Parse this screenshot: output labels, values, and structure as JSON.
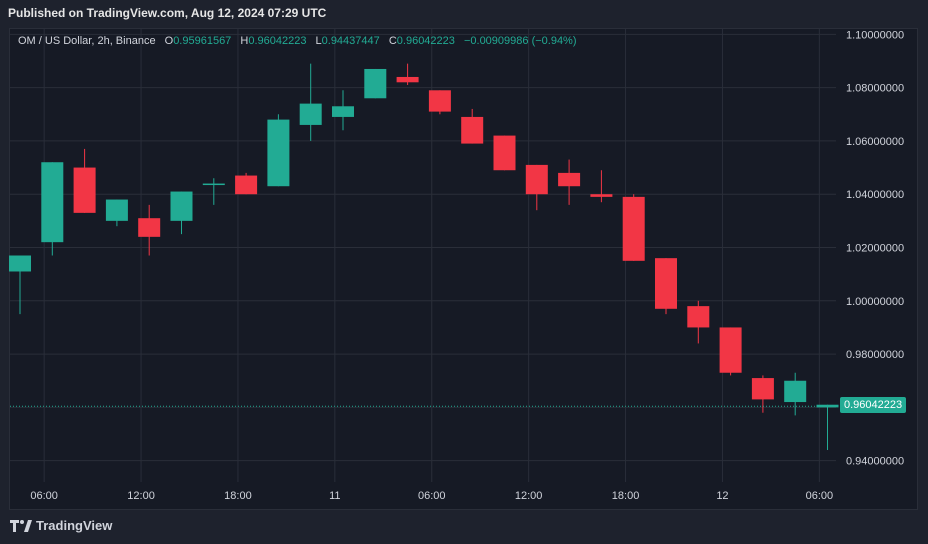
{
  "published": "Published on TradingView.com, Aug 12, 2024 07:29 UTC",
  "legend": {
    "symbol": "OM / US Dollar, 2h, Binance",
    "o_label": "O",
    "o_value": "0.95961567",
    "h_label": "H",
    "h_value": "0.96042223",
    "l_label": "L",
    "l_value": "0.94437447",
    "c_label": "C",
    "c_value": "0.96042223",
    "change": "−0.00909986 (−0.94%)"
  },
  "last_price_tag": "0.96042223",
  "footer_brand": "TradingView",
  "colors": {
    "up": "#22ab94",
    "down": "#f23645",
    "grid": "#2a2e39",
    "bg": "#161a25",
    "axis_text": "#d1d4dc"
  },
  "chart_data": {
    "type": "candlestick",
    "ylim": [
      0.932,
      1.102
    ],
    "y_ticks": [
      "1.10000000",
      "1.08000000",
      "1.06000000",
      "1.04000000",
      "1.02000000",
      "1.00000000",
      "0.98000000",
      "0.96000000",
      "0.94000000"
    ],
    "x_ticks": [
      "06:00",
      "12:00",
      "18:00",
      "11",
      "06:00",
      "12:00",
      "18:00",
      "12",
      "06:00"
    ],
    "last_price": 0.96042223,
    "candles": [
      {
        "o": 1.011,
        "h": 1.017,
        "l": 0.995,
        "c": 1.017
      },
      {
        "o": 1.022,
        "h": 1.052,
        "l": 1.017,
        "c": 1.052
      },
      {
        "o": 1.05,
        "h": 1.057,
        "l": 1.033,
        "c": 1.033
      },
      {
        "o": 1.03,
        "h": 1.038,
        "l": 1.028,
        "c": 1.038
      },
      {
        "o": 1.031,
        "h": 1.036,
        "l": 1.017,
        "c": 1.024
      },
      {
        "o": 1.03,
        "h": 1.041,
        "l": 1.025,
        "c": 1.041
      },
      {
        "o": 1.044,
        "h": 1.046,
        "l": 1.036,
        "c": 1.044
      },
      {
        "o": 1.047,
        "h": 1.048,
        "l": 1.04,
        "c": 1.04
      },
      {
        "o": 1.043,
        "h": 1.07,
        "l": 1.043,
        "c": 1.068
      },
      {
        "o": 1.066,
        "h": 1.089,
        "l": 1.06,
        "c": 1.074
      },
      {
        "o": 1.069,
        "h": 1.079,
        "l": 1.064,
        "c": 1.073
      },
      {
        "o": 1.076,
        "h": 1.087,
        "l": 1.076,
        "c": 1.087
      },
      {
        "o": 1.084,
        "h": 1.089,
        "l": 1.081,
        "c": 1.082
      },
      {
        "o": 1.079,
        "h": 1.079,
        "l": 1.07,
        "c": 1.071
      },
      {
        "o": 1.069,
        "h": 1.072,
        "l": 1.059,
        "c": 1.059
      },
      {
        "o": 1.062,
        "h": 1.062,
        "l": 1.049,
        "c": 1.049
      },
      {
        "o": 1.051,
        "h": 1.051,
        "l": 1.034,
        "c": 1.04
      },
      {
        "o": 1.048,
        "h": 1.053,
        "l": 1.036,
        "c": 1.043
      },
      {
        "o": 1.04,
        "h": 1.049,
        "l": 1.037,
        "c": 1.039
      },
      {
        "o": 1.039,
        "h": 1.04,
        "l": 1.015,
        "c": 1.015
      },
      {
        "o": 1.016,
        "h": 1.016,
        "l": 0.995,
        "c": 0.997
      },
      {
        "o": 0.998,
        "h": 1.0,
        "l": 0.984,
        "c": 0.99
      },
      {
        "o": 0.99,
        "h": 0.99,
        "l": 0.972,
        "c": 0.973
      },
      {
        "o": 0.971,
        "h": 0.972,
        "l": 0.958,
        "c": 0.963
      },
      {
        "o": 0.962,
        "h": 0.973,
        "l": 0.957,
        "c": 0.97
      },
      {
        "o": 0.96,
        "h": 0.961,
        "l": 0.944,
        "c": 0.961
      }
    ]
  }
}
